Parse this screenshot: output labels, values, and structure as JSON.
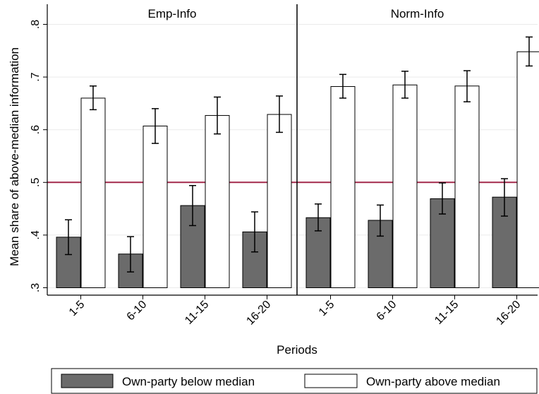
{
  "chart_data": {
    "type": "bar",
    "ylabel": "Mean share of above-median information",
    "xlabel": "Periods",
    "ylim": [
      0.3,
      0.8
    ],
    "yticks": [
      {
        "value": 0.3,
        "label": ".3"
      },
      {
        "value": 0.4,
        "label": ".4"
      },
      {
        "value": 0.5,
        "label": ".5"
      },
      {
        "value": 0.6,
        "label": ".6"
      },
      {
        "value": 0.7,
        "label": ".7"
      },
      {
        "value": 0.8,
        "label": ".8"
      }
    ],
    "reference_line": {
      "value": 0.5,
      "color": "#a3294a"
    },
    "grid": true,
    "legend_position": "bottom",
    "categories": [
      "1-5",
      "6-10",
      "11-15",
      "16-20"
    ],
    "series": [
      {
        "name": "Own-party below median",
        "color": "#6b6b6b"
      },
      {
        "name": "Own-party above median",
        "color": "#ffffff"
      }
    ],
    "panels": [
      {
        "title": "Emp-Info",
        "values": [
          {
            "below": 0.396,
            "below_ci": [
              0.363,
              0.429
            ],
            "above": 0.66,
            "above_ci": [
              0.638,
              0.683
            ]
          },
          {
            "below": 0.364,
            "below_ci": [
              0.33,
              0.397
            ],
            "above": 0.607,
            "above_ci": [
              0.574,
              0.64
            ]
          },
          {
            "below": 0.456,
            "below_ci": [
              0.418,
              0.494
            ],
            "above": 0.627,
            "above_ci": [
              0.592,
              0.662
            ]
          },
          {
            "below": 0.406,
            "below_ci": [
              0.368,
              0.444
            ],
            "above": 0.629,
            "above_ci": [
              0.595,
              0.664
            ]
          }
        ]
      },
      {
        "title": "Norm-Info",
        "values": [
          {
            "below": 0.433,
            "below_ci": [
              0.408,
              0.459
            ],
            "above": 0.682,
            "above_ci": [
              0.66,
              0.705
            ]
          },
          {
            "below": 0.428,
            "below_ci": [
              0.398,
              0.457
            ],
            "above": 0.685,
            "above_ci": [
              0.66,
              0.711
            ]
          },
          {
            "below": 0.469,
            "below_ci": [
              0.44,
              0.499
            ],
            "above": 0.683,
            "above_ci": [
              0.653,
              0.712
            ]
          },
          {
            "below": 0.472,
            "below_ci": [
              0.436,
              0.507
            ],
            "above": 0.748,
            "above_ci": [
              0.721,
              0.776
            ]
          }
        ]
      }
    ]
  }
}
